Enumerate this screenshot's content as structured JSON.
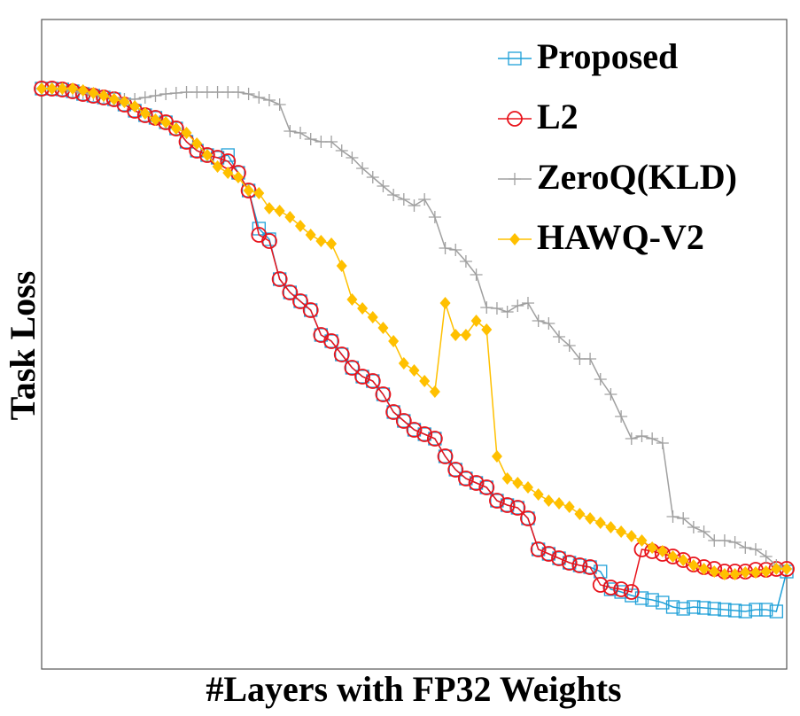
{
  "chart_data": {
    "type": "line",
    "xlabel": "#Layers with FP32 Weights",
    "ylabel": "Task Loss",
    "xlim": [
      0,
      72
    ],
    "ylim": [
      0,
      733
    ],
    "legend": "upper right",
    "series": [
      {
        "name": "Proposed",
        "color": "#1fa0d8",
        "marker": "square",
        "values": [
          655,
          655,
          654,
          652,
          649,
          647,
          645,
          643,
          637,
          630,
          625,
          622,
          617,
          610,
          595,
          585,
          580,
          577,
          580,
          560,
          540,
          497,
          485,
          440,
          425,
          415,
          405,
          377,
          370,
          355,
          340,
          330,
          325,
          310,
          290,
          280,
          270,
          265,
          260,
          240,
          225,
          215,
          210,
          205,
          190,
          185,
          182,
          170,
          135,
          130,
          125,
          120,
          117,
          115,
          110,
          90,
          87,
          83,
          80,
          78,
          75,
          70,
          68,
          70,
          69,
          68,
          67,
          66,
          65,
          67,
          67,
          65,
          110
        ]
      },
      {
        "name": "L2",
        "color": "#e8141c",
        "marker": "circle",
        "values": [
          655,
          655,
          654,
          652,
          649,
          647,
          645,
          643,
          637,
          630,
          625,
          622,
          617,
          610,
          595,
          585,
          580,
          577,
          573,
          560,
          540,
          490,
          483,
          440,
          425,
          415,
          405,
          377,
          370,
          355,
          340,
          330,
          325,
          310,
          290,
          280,
          270,
          265,
          260,
          240,
          225,
          215,
          210,
          205,
          190,
          185,
          182,
          170,
          135,
          130,
          125,
          120,
          117,
          115,
          95,
          92,
          90,
          87,
          135,
          133,
          130,
          127,
          123,
          118,
          115,
          113,
          110,
          110,
          110,
          112,
          112,
          113,
          113
        ]
      },
      {
        "name": "ZeroQ(KLD)",
        "color": "#a0a0a0",
        "marker": "plus",
        "values": [
          655,
          655,
          654,
          652,
          650,
          648,
          646,
          645,
          643,
          643,
          645,
          647,
          649,
          650,
          651,
          651,
          651,
          651,
          651,
          651,
          649,
          645,
          642,
          637,
          607,
          605,
          598,
          595,
          595,
          585,
          577,
          565,
          555,
          545,
          535,
          530,
          523,
          530,
          510,
          475,
          473,
          460,
          445,
          408,
          407,
          403,
          410,
          413,
          393,
          390,
          375,
          365,
          350,
          350,
          327,
          310,
          285,
          260,
          263,
          260,
          255,
          172,
          170,
          160,
          155,
          145,
          145,
          143,
          137,
          135,
          127,
          117,
          113
        ]
      },
      {
        "name": "HAWQ-V2",
        "color": "#ffc000",
        "marker": "diamond",
        "values": [
          655,
          655,
          655,
          655,
          653,
          650,
          647,
          643,
          640,
          635,
          627,
          620,
          617,
          610,
          605,
          593,
          580,
          567,
          560,
          555,
          540,
          537,
          520,
          517,
          510,
          500,
          490,
          483,
          480,
          455,
          417,
          407,
          397,
          385,
          370,
          345,
          337,
          325,
          313,
          413,
          377,
          377,
          393,
          383,
          240,
          215,
          210,
          205,
          197,
          190,
          187,
          183,
          175,
          170,
          165,
          160,
          155,
          150,
          145,
          137,
          133,
          127,
          123,
          117,
          113,
          110,
          107,
          107,
          109,
          109,
          110,
          113,
          113
        ]
      }
    ]
  }
}
